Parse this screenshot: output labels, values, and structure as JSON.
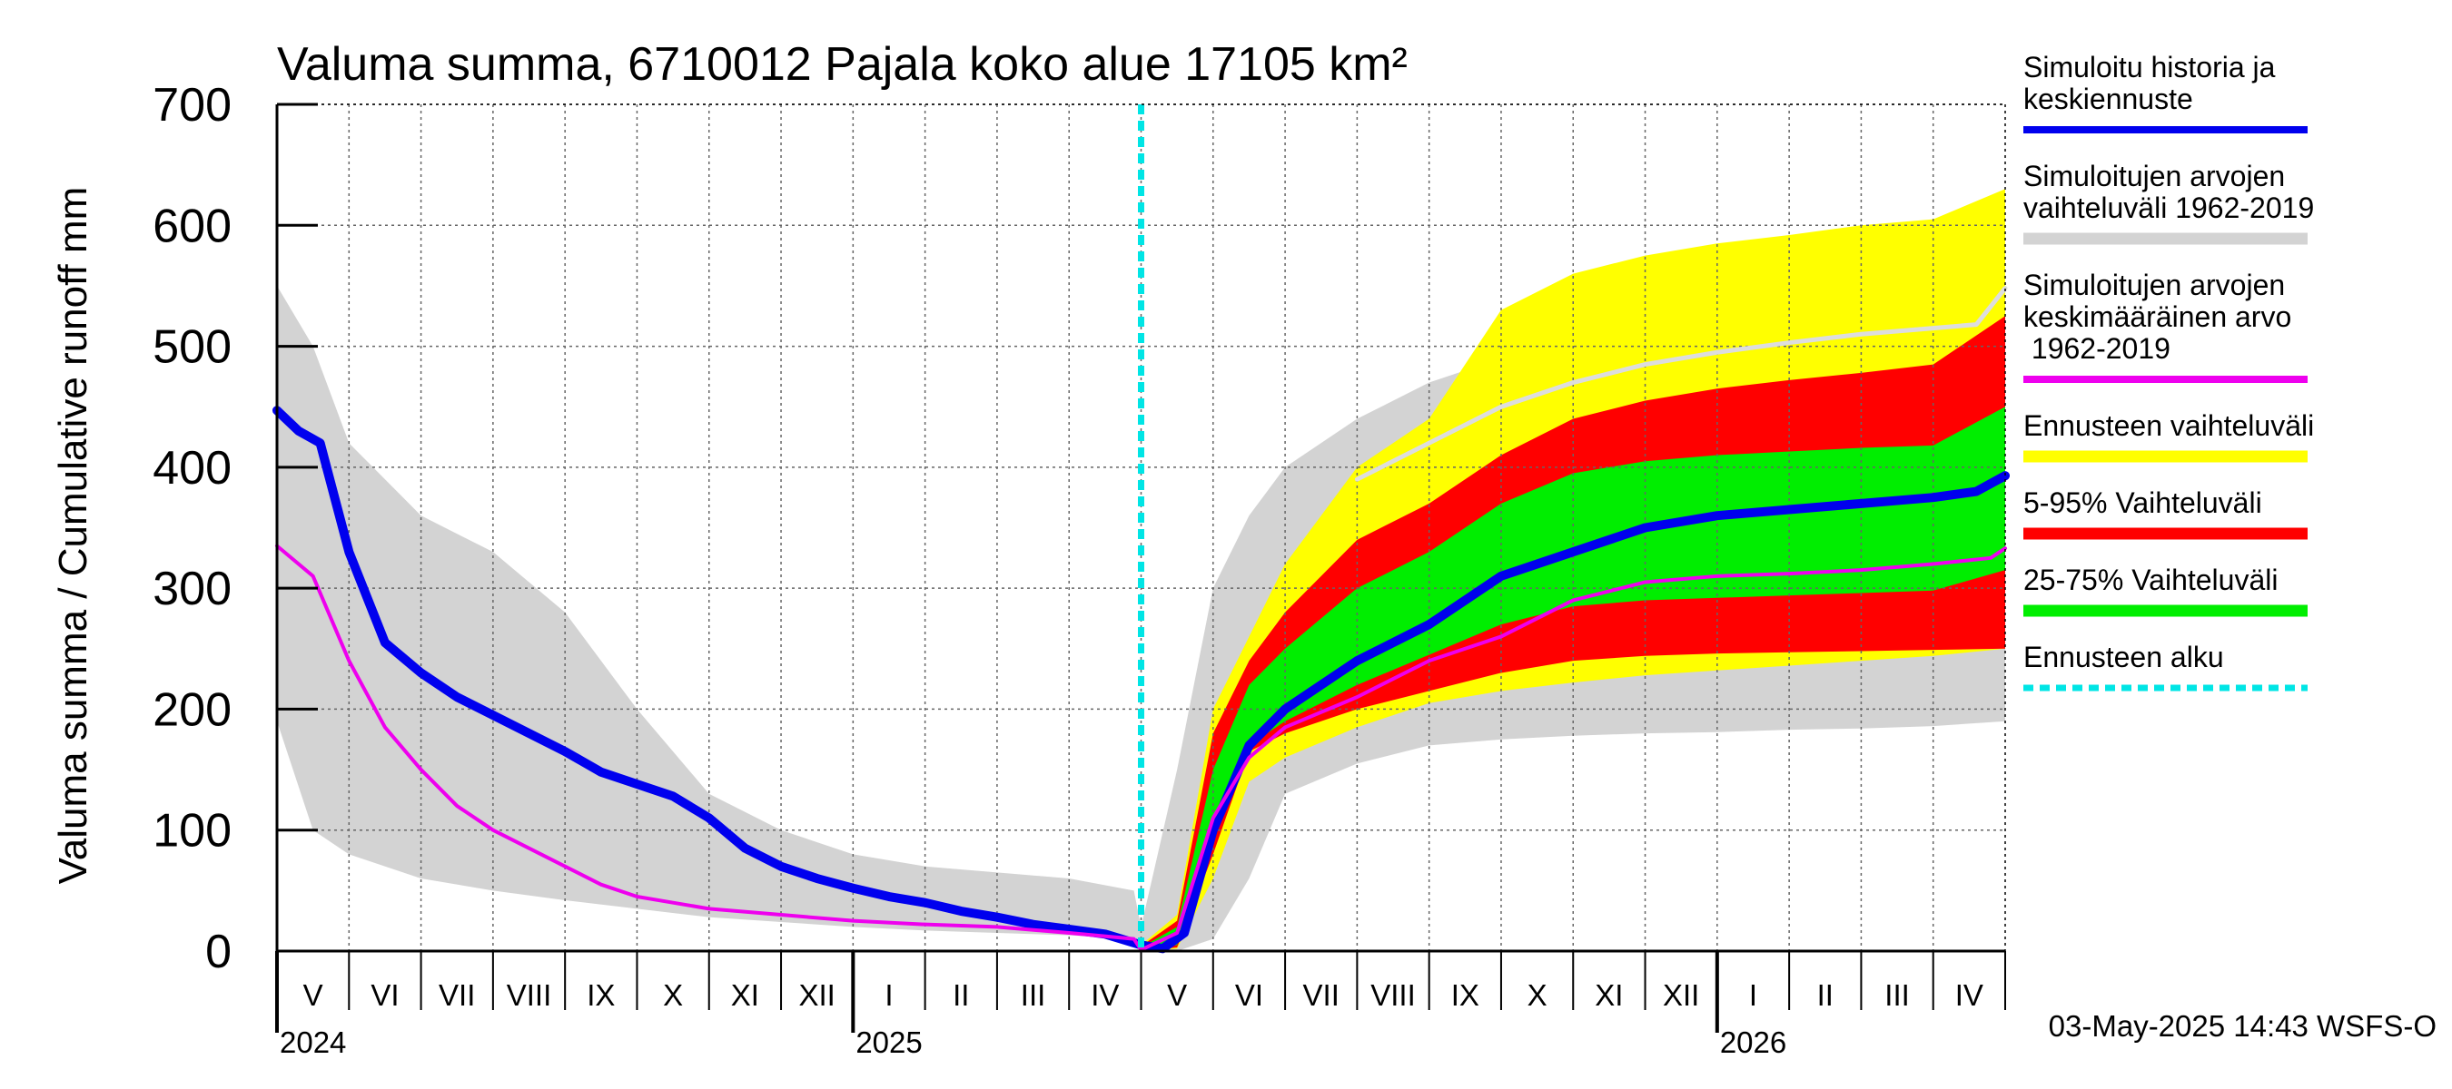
{
  "chart_data": {
    "type": "area",
    "title": "Valuma summa, 6710012 Pajala koko alue 17105 km²",
    "ylabel": "Valuma summa / Cumulative runoff    mm",
    "ylim": [
      0,
      700
    ],
    "yticks": [
      0,
      100,
      200,
      300,
      400,
      500,
      600,
      700
    ],
    "x_unit": "months since start of May 2024",
    "xlim": [
      0,
      24
    ],
    "forecast_start": 12,
    "months": [
      "V",
      "VI",
      "VII",
      "VIII",
      "IX",
      "X",
      "XI",
      "XII",
      "I",
      "II",
      "III",
      "IV",
      "V",
      "VI",
      "VII",
      "VIII",
      "IX",
      "X",
      "XI",
      "XII",
      "I",
      "II",
      "III",
      "IV"
    ],
    "years": [
      {
        "label": "2024",
        "x": 0
      },
      {
        "label": "2025",
        "x": 8
      },
      {
        "label": "2026",
        "x": 20
      }
    ],
    "series": [
      {
        "name": "Simuloitujen arvojen vaihteluväli 1962-2019",
        "kind": "band",
        "color": "#d3d3d3",
        "x": [
          0,
          0.5,
          1,
          2,
          3,
          4,
          5,
          6,
          7,
          8,
          9,
          10,
          11,
          11.9,
          12,
          12.5,
          13,
          13.5,
          14,
          15,
          16,
          17,
          18,
          19,
          20,
          21,
          22,
          23,
          24
        ],
        "upper": [
          550,
          500,
          420,
          360,
          330,
          280,
          200,
          130,
          100,
          80,
          70,
          65,
          60,
          50,
          20,
          150,
          300,
          360,
          400,
          440,
          470,
          490,
          500,
          505,
          510,
          513,
          515,
          518,
          545
        ],
        "lower": [
          190,
          100,
          80,
          60,
          50,
          42,
          35,
          28,
          24,
          20,
          17,
          15,
          13,
          10,
          0,
          0,
          10,
          60,
          130,
          155,
          170,
          175,
          178,
          180,
          181,
          183,
          184,
          186,
          190
        ]
      },
      {
        "name": "Ennusteen vaihteluväli",
        "kind": "band",
        "color": "#ffff00",
        "x": [
          12,
          12.5,
          13,
          13.5,
          14,
          15,
          16,
          17,
          18,
          19,
          20,
          21,
          22,
          23,
          24
        ],
        "upper": [
          5,
          30,
          200,
          260,
          320,
          400,
          440,
          530,
          560,
          575,
          585,
          592,
          600,
          605,
          630
        ],
        "lower": [
          0,
          2,
          60,
          140,
          160,
          185,
          205,
          215,
          222,
          228,
          232,
          236,
          240,
          244,
          250
        ]
      },
      {
        "name": "5-95% Vaihteluväli",
        "kind": "band",
        "color": "#ff0000",
        "x": [
          12,
          12.5,
          13,
          13.5,
          14,
          15,
          16,
          17,
          18,
          19,
          20,
          21,
          22,
          23,
          24
        ],
        "upper": [
          4,
          25,
          180,
          240,
          280,
          340,
          370,
          410,
          440,
          455,
          465,
          472,
          478,
          485,
          525
        ],
        "lower": [
          0,
          3,
          80,
          165,
          180,
          200,
          215,
          230,
          240,
          244,
          246,
          247,
          248,
          249,
          250
        ]
      },
      {
        "name": "25-75% Vaihteluväli",
        "kind": "band",
        "color": "#00ee00",
        "x": [
          12,
          12.5,
          13,
          13.5,
          14,
          15,
          16,
          17,
          18,
          19,
          20,
          21,
          22,
          23,
          24
        ],
        "upper": [
          3,
          20,
          150,
          220,
          250,
          300,
          330,
          370,
          395,
          405,
          410,
          413,
          416,
          418,
          450
        ],
        "lower": [
          1,
          5,
          100,
          170,
          190,
          220,
          245,
          270,
          285,
          290,
          292,
          294,
          296,
          298,
          315
        ]
      },
      {
        "name": "Simuloitu historia ja keskiennuste",
        "kind": "line",
        "color": "#0000ee",
        "x": [
          0,
          0.3,
          0.6,
          1,
          1.2,
          1.5,
          2,
          2.5,
          3,
          3.5,
          4,
          4.5,
          5,
          5.5,
          6,
          6.5,
          7,
          7.5,
          8,
          8.5,
          9,
          9.5,
          10,
          10.5,
          11,
          11.5,
          12,
          12.3,
          12.6,
          13,
          13.5,
          14,
          15,
          16,
          17,
          18,
          19,
          20,
          21,
          22,
          23,
          23.6,
          24
        ],
        "y": [
          447,
          430,
          420,
          330,
          300,
          255,
          230,
          210,
          195,
          180,
          165,
          148,
          138,
          128,
          110,
          85,
          70,
          60,
          52,
          45,
          40,
          33,
          28,
          22,
          18,
          14,
          5,
          2,
          15,
          100,
          170,
          200,
          240,
          270,
          310,
          330,
          350,
          360,
          365,
          370,
          375,
          380,
          393
        ]
      },
      {
        "name": "Simuloitujen arvojen keskimääräinen arvo 1962-2019",
        "kind": "line",
        "color": "#ee00ee",
        "x": [
          0,
          0.5,
          1,
          1.5,
          2,
          2.5,
          3,
          3.5,
          4,
          4.5,
          5,
          5.5,
          6,
          7,
          8,
          9,
          10,
          11,
          11.9,
          12,
          12.5,
          13,
          13.5,
          14,
          15,
          16,
          17,
          18,
          19,
          20,
          21,
          22,
          23,
          23.8,
          24
        ],
        "y": [
          335,
          310,
          240,
          185,
          150,
          120,
          100,
          85,
          70,
          55,
          45,
          40,
          35,
          30,
          25,
          22,
          20,
          15,
          10,
          1,
          15,
          110,
          160,
          185,
          210,
          240,
          260,
          290,
          305,
          310,
          312,
          315,
          320,
          325,
          333
        ]
      },
      {
        "name": "Simuloitujen arvojen upper mean",
        "kind": "line",
        "color": "#dddddd",
        "x": [
          15,
          16,
          17,
          18,
          19,
          20,
          21,
          22,
          23,
          23.6,
          24
        ],
        "y": [
          390,
          420,
          450,
          470,
          485,
          495,
          503,
          510,
          515,
          518,
          548
        ]
      }
    ],
    "legend": [
      {
        "label": "Simuloitu historia ja keskiennuste",
        "color": "#0000ee",
        "style": "line"
      },
      {
        "label": "Simuloitujen arvojen vaihteluväli 1962-2019",
        "color": "#d3d3d3",
        "style": "thick"
      },
      {
        "label": "Simuloitujen arvojen keskimääräinen arvo 1962-2019",
        "color": "#ee00ee",
        "style": "line"
      },
      {
        "label": "Ennusteen vaihteluväli",
        "color": "#ffff00",
        "style": "thick"
      },
      {
        "label": "5-95% Vaihteluväli",
        "color": "#ff0000",
        "style": "thick"
      },
      {
        "label": "25-75% Vaihteluväli",
        "color": "#00ee00",
        "style": "thick"
      },
      {
        "label": "Ennusteen alku",
        "color": "#00e5e5",
        "style": "dashed"
      }
    ],
    "timestamp": "03-May-2025 14:43 WSFS-O"
  }
}
